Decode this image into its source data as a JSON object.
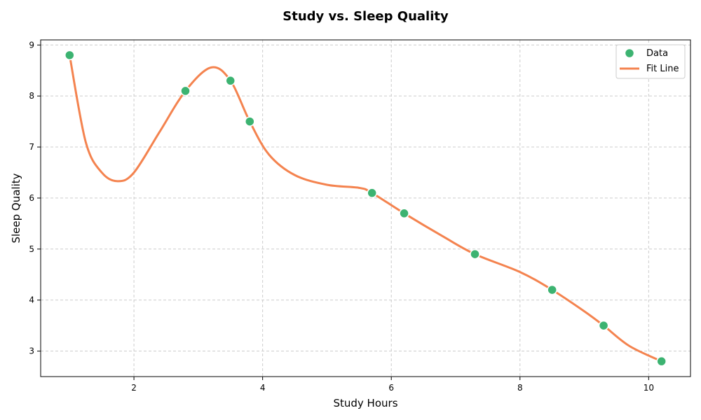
{
  "chart_data": {
    "type": "scatter",
    "title": "Study vs. Sleep Quality",
    "xlabel": "Study Hours",
    "ylabel": "Sleep Quality",
    "xlim": [
      0.55,
      10.65
    ],
    "ylim": [
      2.5,
      9.1
    ],
    "xticks": [
      2,
      4,
      6,
      8,
      10
    ],
    "yticks": [
      3,
      4,
      5,
      6,
      7,
      8,
      9
    ],
    "grid": true,
    "legend_position": "top-right",
    "series": [
      {
        "name": "Data",
        "kind": "scatter",
        "color": "#3cb371",
        "x": [
          1.0,
          2.8,
          3.5,
          3.8,
          5.7,
          6.2,
          7.3,
          8.5,
          9.3,
          10.2
        ],
        "y": [
          8.8,
          8.1,
          8.3,
          7.5,
          6.1,
          5.7,
          4.9,
          4.2,
          3.5,
          2.8
        ]
      },
      {
        "name": "Fit Line",
        "kind": "line",
        "color": "#f4834f",
        "x": [
          1.0,
          1.25,
          1.5,
          1.75,
          2.0,
          2.4,
          2.8,
          3.2,
          3.5,
          3.8,
          4.1,
          4.5,
          5.0,
          5.5,
          5.7,
          6.2,
          6.8,
          7.3,
          8.0,
          8.5,
          9.0,
          9.3,
          9.7,
          10.2
        ],
        "y": [
          8.8,
          7.1,
          6.5,
          6.33,
          6.5,
          7.3,
          8.1,
          8.56,
          8.3,
          7.5,
          6.85,
          6.45,
          6.26,
          6.2,
          6.1,
          5.7,
          5.25,
          4.9,
          4.55,
          4.2,
          3.78,
          3.5,
          3.1,
          2.8
        ]
      }
    ]
  }
}
